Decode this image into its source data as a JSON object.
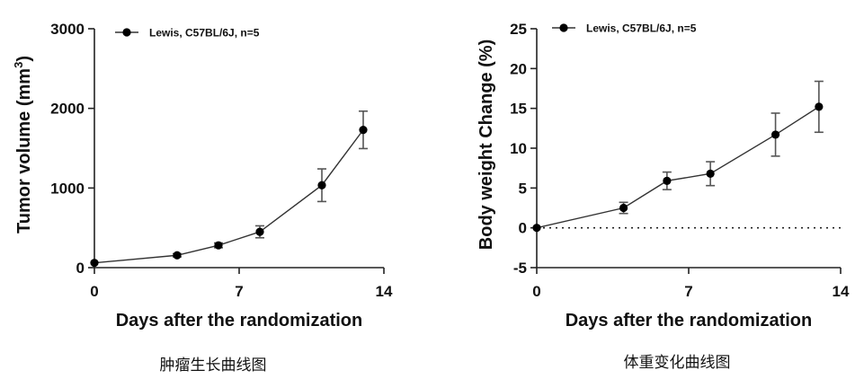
{
  "chart_data": [
    {
      "type": "line",
      "title": "",
      "caption": "肿瘤生长曲线图",
      "xlabel": "Days after the randomization",
      "ylabel_main": "Tumor volume (mm",
      "ylabel_sup": "3",
      "ylabel_close": ")",
      "xlim": [
        0,
        14
      ],
      "ylim": [
        0,
        3000
      ],
      "xticks": [
        0,
        7,
        14
      ],
      "yticks": [
        0,
        1000,
        2000,
        3000
      ],
      "legend": "top-left",
      "series": [
        {
          "name": "Lewis, C57BL/6J, n=5",
          "x": [
            0,
            4,
            6,
            8,
            11,
            13
          ],
          "y": [
            60,
            155,
            280,
            450,
            1035,
            1730
          ],
          "err": [
            0,
            20,
            30,
            75,
            205,
            235
          ]
        }
      ],
      "reference_line": null
    },
    {
      "type": "line",
      "title": "",
      "caption": "体重变化曲线图",
      "xlabel": "Days after the randomization",
      "ylabel_main": "Body weight Change (%)",
      "ylabel_sup": "",
      "ylabel_close": "",
      "xlim": [
        0,
        14
      ],
      "ylim": [
        -5,
        25
      ],
      "xticks": [
        0,
        7,
        14
      ],
      "yticks": [
        -5,
        0,
        5,
        10,
        15,
        20,
        25
      ],
      "legend": "top-left",
      "series": [
        {
          "name": "Lewis, C57BL/6J, n=5",
          "x": [
            0,
            4,
            6,
            8,
            11,
            13
          ],
          "y": [
            0,
            2.5,
            5.9,
            6.8,
            11.7,
            15.2
          ],
          "err": [
            0,
            0.7,
            1.1,
            1.5,
            2.7,
            3.2
          ]
        }
      ],
      "reference_line": 0
    }
  ]
}
